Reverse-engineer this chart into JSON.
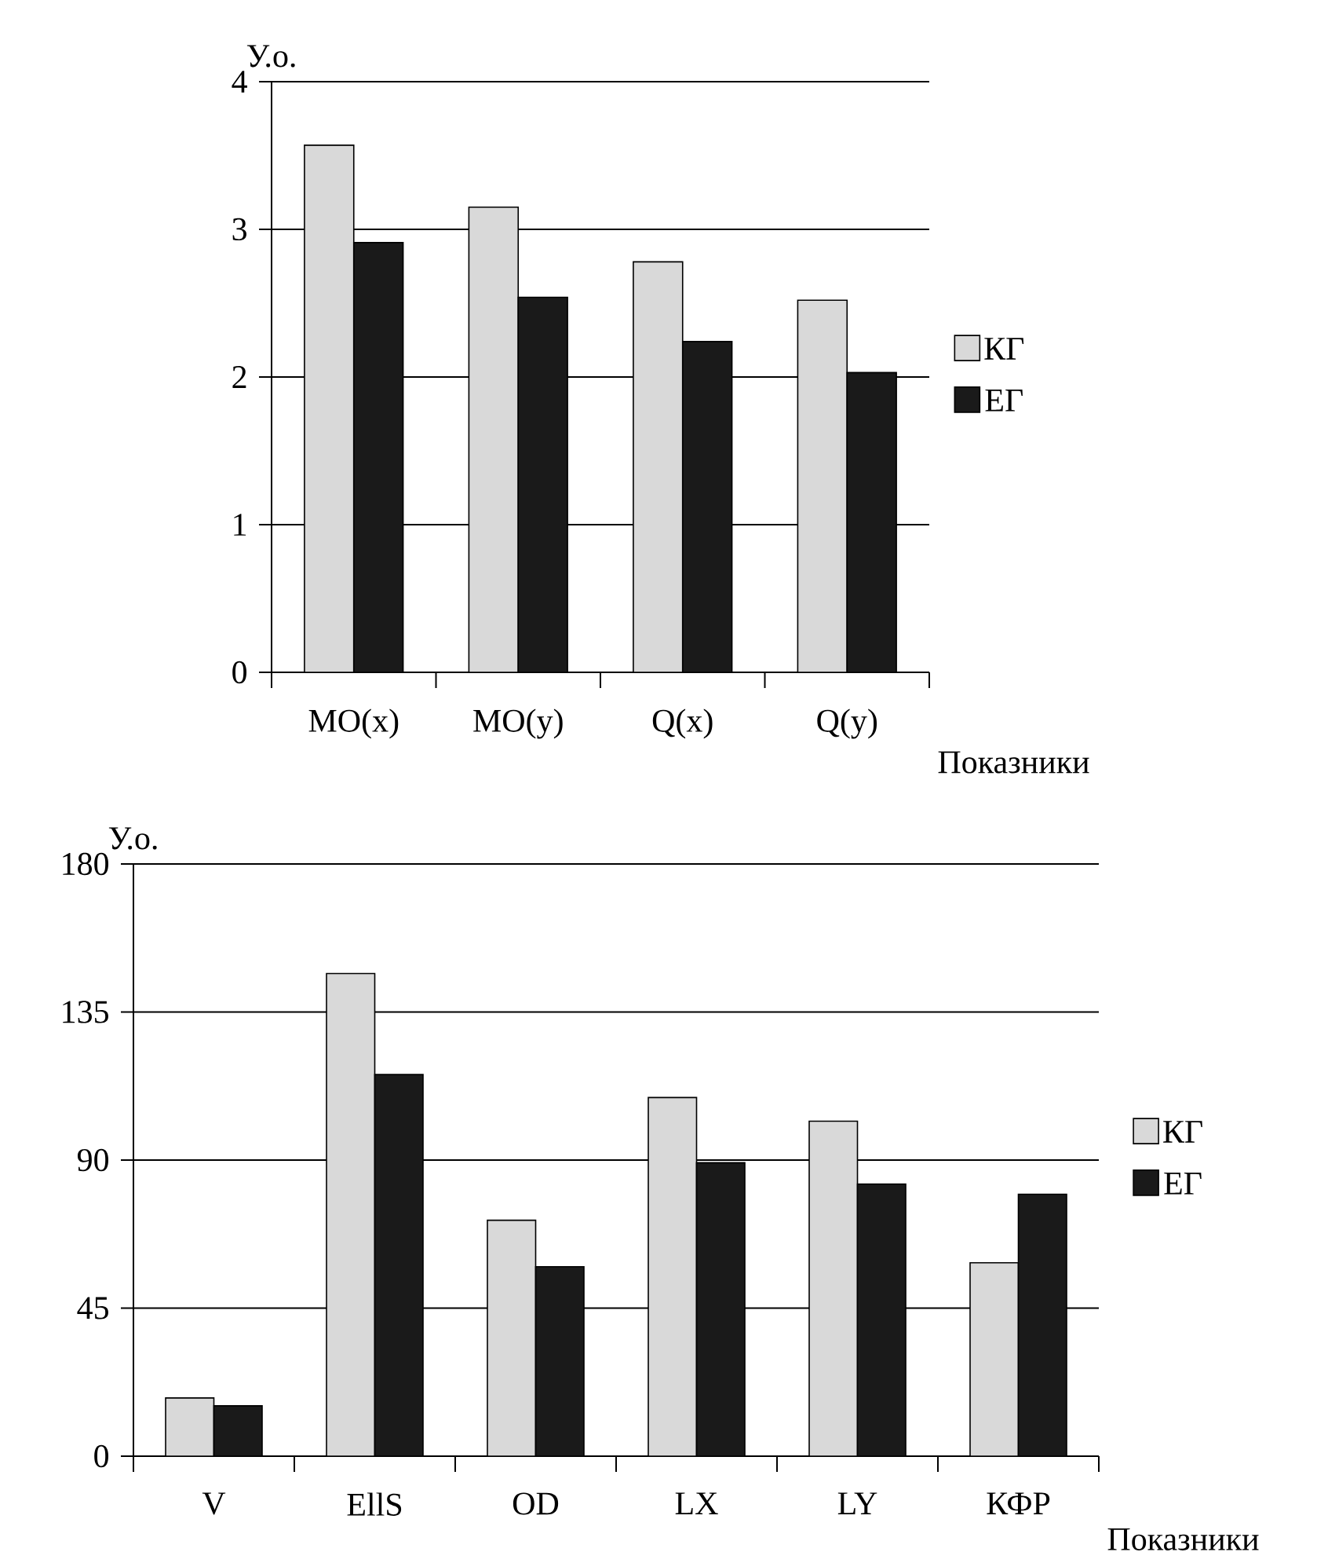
{
  "chart_data": [
    {
      "type": "bar",
      "ylabel": "У.о.",
      "xlabel": "Показники",
      "categories": [
        "MO(x)",
        "MO(y)",
        "Q(x)",
        "Q(y)"
      ],
      "series": [
        {
          "name": "КГ",
          "color": "#d9d9d9",
          "values": [
            3.57,
            3.15,
            2.78,
            2.52
          ]
        },
        {
          "name": "ЕГ",
          "color": "#1a1a1a",
          "values": [
            2.91,
            2.54,
            2.24,
            2.03
          ]
        }
      ],
      "ylim": [
        0,
        4
      ],
      "yticks": [
        0,
        1,
        2,
        3,
        4
      ],
      "grid": "y",
      "legend": "right"
    },
    {
      "type": "bar",
      "ylabel": "У.о.",
      "xlabel": "Показники",
      "categories": [
        "V",
        "EllS",
        "OD",
        "LX",
        "LY",
        "КФР"
      ],
      "series": [
        {
          "name": "КГ",
          "color": "#d9d9d9",
          "values": [
            17.7,
            146.7,
            71.7,
            109,
            101.8,
            58.8
          ]
        },
        {
          "name": "ЕГ",
          "color": "#1a1a1a",
          "values": [
            15.3,
            116,
            57.6,
            89.2,
            82.7,
            79.6
          ]
        }
      ],
      "ylim": [
        0,
        180
      ],
      "yticks": [
        0,
        45,
        90,
        135,
        180
      ],
      "grid": "y",
      "legend": "right"
    }
  ]
}
